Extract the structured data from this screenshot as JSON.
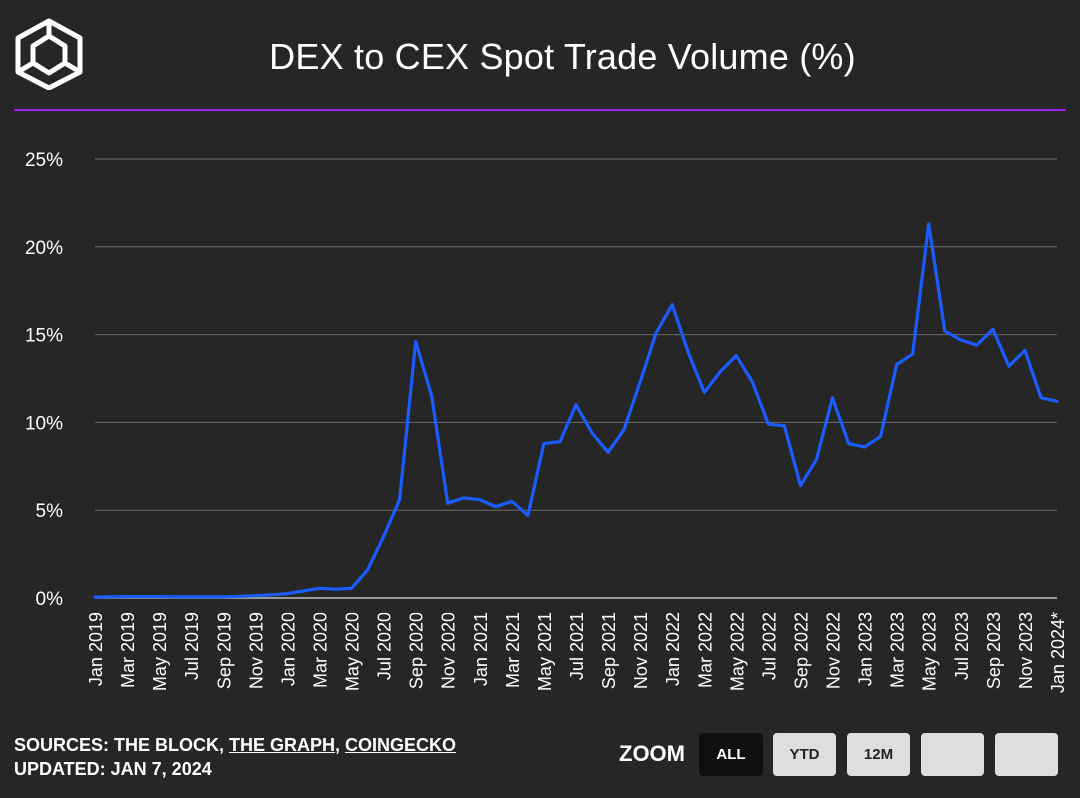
{
  "colors": {
    "background": "#262626",
    "accent_rule": "#a020f0",
    "line": "#1a5cff",
    "grid": "#6a6a6a"
  },
  "header": {
    "title": "DEX to CEX Spot Trade Volume (%)",
    "logo_icon": "cube-logo-icon"
  },
  "footer": {
    "sources_prefix": "SOURCES: THE BLOCK, ",
    "source_link_1": "THE GRAPH",
    "sources_sep": ", ",
    "source_link_2": "COINGECKO",
    "updated": "UPDATED: JAN 7, 2024"
  },
  "zoom": {
    "label": "ZOOM",
    "buttons": [
      {
        "label": "ALL",
        "active": true
      },
      {
        "label": "YTD",
        "active": false
      },
      {
        "label": "12M",
        "active": false
      },
      {
        "label": "",
        "active": false
      },
      {
        "label": "",
        "active": false
      }
    ]
  },
  "chart_data": {
    "type": "line",
    "title": "DEX to CEX Spot Trade Volume (%)",
    "xlabel": "",
    "ylabel": "",
    "ylim": [
      0,
      25
    ],
    "yticks": [
      0,
      5,
      10,
      15,
      20,
      25
    ],
    "ytick_labels": [
      "0%",
      "5%",
      "10%",
      "15%",
      "20%",
      "25%"
    ],
    "grid": true,
    "x_tick_labels": [
      "Jan 2019",
      "Mar 2019",
      "May 2019",
      "Jul 2019",
      "Sep 2019",
      "Nov 2019",
      "Jan 2020",
      "Mar 2020",
      "May 2020",
      "Jul 2020",
      "Sep 2020",
      "Nov 2020",
      "Jan 2021",
      "Mar 2021",
      "May 2021",
      "Jul 2021",
      "Sep 2021",
      "Nov 2021",
      "Jan 2022",
      "Mar 2022",
      "May 2022",
      "Jul 2022",
      "Sep 2022",
      "Nov 2022",
      "Jan 2023",
      "Mar 2023",
      "May 2023",
      "Jul 2023",
      "Sep 2023",
      "Nov 2023",
      "Jan 2024*"
    ],
    "series": [
      {
        "name": "DEX to CEX Spot Trade Volume (%)",
        "x": [
          "Jan 2019",
          "Feb 2019",
          "Mar 2019",
          "Apr 2019",
          "May 2019",
          "Jun 2019",
          "Jul 2019",
          "Aug 2019",
          "Sep 2019",
          "Oct 2019",
          "Nov 2019",
          "Dec 2019",
          "Jan 2020",
          "Feb 2020",
          "Mar 2020",
          "Apr 2020",
          "May 2020",
          "Jun 2020",
          "Jul 2020",
          "Aug 2020",
          "Sep 2020",
          "Oct 2020",
          "Nov 2020",
          "Dec 2020",
          "Jan 2021",
          "Feb 2021",
          "Mar 2021",
          "Apr 2021",
          "May 2021",
          "Jun 2021",
          "Jul 2021",
          "Aug 2021",
          "Sep 2021",
          "Oct 2021",
          "Nov 2021",
          "Dec 2021",
          "Jan 2022",
          "Feb 2022",
          "Mar 2022",
          "Apr 2022",
          "May 2022",
          "Jun 2022",
          "Jul 2022",
          "Aug 2022",
          "Sep 2022",
          "Oct 2022",
          "Nov 2022",
          "Dec 2022",
          "Jan 2023",
          "Feb 2023",
          "Mar 2023",
          "Apr 2023",
          "May 2023",
          "Jun 2023",
          "Jul 2023",
          "Aug 2023",
          "Sep 2023",
          "Oct 2023",
          "Nov 2023",
          "Dec 2023",
          "Jan 2024*"
        ],
        "values": [
          0.05,
          0.07,
          0.08,
          0.08,
          0.08,
          0.07,
          0.07,
          0.07,
          0.07,
          0.09,
          0.13,
          0.18,
          0.25,
          0.4,
          0.55,
          0.5,
          0.55,
          1.6,
          3.5,
          5.6,
          14.6,
          11.5,
          5.4,
          5.7,
          5.6,
          5.2,
          5.5,
          4.7,
          8.8,
          8.9,
          11.0,
          9.4,
          8.3,
          9.6,
          12.3,
          15.1,
          16.7,
          14.0,
          11.7,
          12.9,
          13.8,
          12.3,
          9.9,
          9.8,
          6.4,
          7.9,
          11.4,
          8.8,
          8.6,
          9.2,
          13.3,
          13.9,
          21.3,
          15.2,
          14.7,
          14.4,
          15.3,
          13.2,
          14.1,
          11.4,
          11.2
        ]
      }
    ]
  }
}
